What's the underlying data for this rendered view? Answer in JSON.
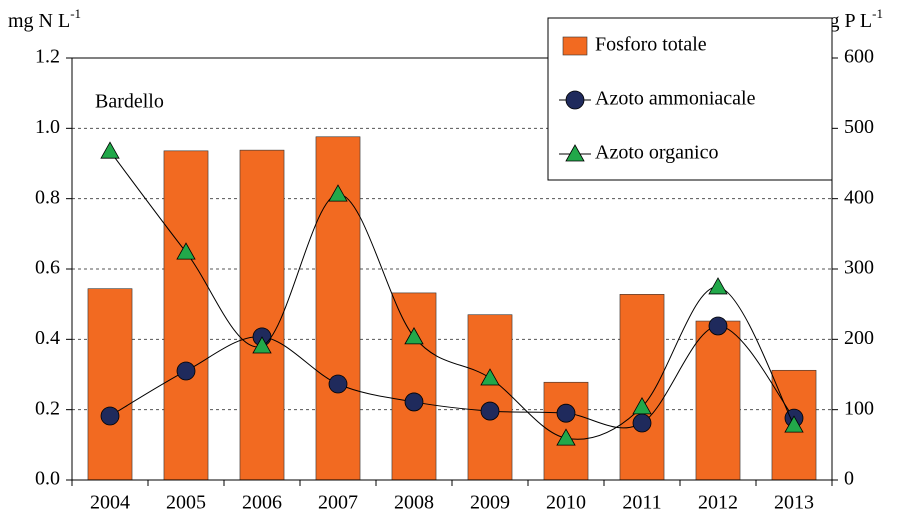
{
  "chart_data": {
    "type": "combo",
    "ylabel": [
      "mg N L",
      "-1"
    ],
    "y2label": [
      "µg P L",
      "-1"
    ],
    "annotation": "Bardello",
    "categories": [
      "2004",
      "2005",
      "2006",
      "2007",
      "2008",
      "2009",
      "2010",
      "2011",
      "2012",
      "2013"
    ],
    "series": [
      {
        "name": "Fosforo totale",
        "type": "bar",
        "axis": "y2",
        "color": "#f26a21",
        "values": [
          272,
          468,
          469,
          488,
          266,
          235,
          139,
          264,
          226,
          156
        ]
      },
      {
        "name": "Azoto ammoniacale",
        "type": "line",
        "marker": "circle",
        "color": "#1f2a5c",
        "values": [
          0.182,
          0.31,
          0.407,
          0.273,
          0.222,
          0.196,
          0.19,
          0.162,
          0.438,
          0.176
        ]
      },
      {
        "name": "Azoto organico",
        "type": "line",
        "marker": "triangle",
        "color": "#22a84a",
        "values": [
          0.935,
          0.648,
          0.381,
          0.813,
          0.407,
          0.29,
          0.119,
          0.208,
          0.549,
          0.156
        ]
      }
    ],
    "ylim": [
      0,
      1.2
    ],
    "yticks": [
      {
        "value": 0,
        "label": "0.0"
      },
      {
        "value": 0.2,
        "label": "0.2"
      },
      {
        "value": 0.4,
        "label": "0.4"
      },
      {
        "value": 0.6,
        "label": "0.6"
      },
      {
        "value": 0.8,
        "label": "0.8"
      },
      {
        "value": 1,
        "label": "1.0"
      },
      {
        "value": 1.2,
        "label": "1.2"
      }
    ],
    "y2lim": [
      0,
      600
    ],
    "y2ticks": [
      0,
      100,
      200,
      300,
      400,
      500,
      600
    ],
    "grid": true
  }
}
